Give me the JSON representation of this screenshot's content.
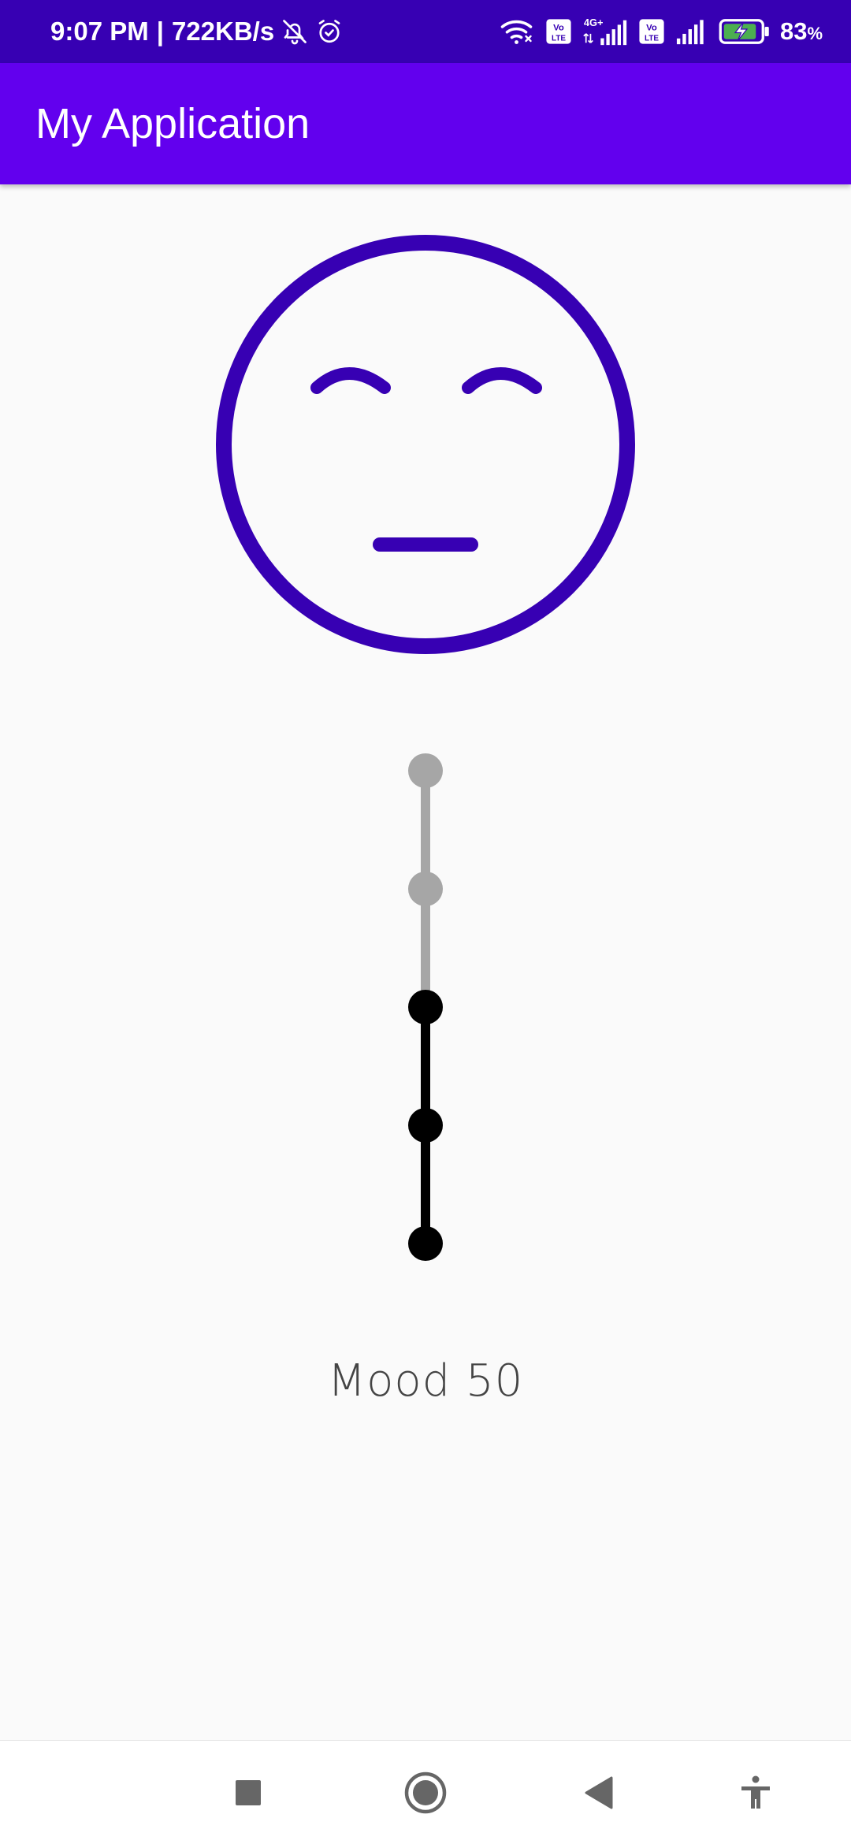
{
  "status_bar": {
    "time": "9:07 PM",
    "separator": "|",
    "network_speed": "722KB/s",
    "network_type": "4G+",
    "volte_label": "Vo LTE",
    "battery_percent": "83",
    "battery_unit": "%",
    "icons": [
      "mute-icon",
      "alarm-icon",
      "wifi-icon",
      "volte-icon",
      "signal-icon",
      "battery-charging-icon"
    ]
  },
  "app_bar": {
    "title": "My Application",
    "color": "#6200ee"
  },
  "face": {
    "expression": "neutral",
    "stroke_color": "#3700b3"
  },
  "mood_slider": {
    "steps": 5,
    "value": 50,
    "active_color": "#000000",
    "inactive_color": "#a6a6a6"
  },
  "mood_label": "Mood 50",
  "nav_bar": {
    "buttons": [
      "recents-icon",
      "home-icon",
      "back-icon",
      "accessibility-icon"
    ]
  }
}
